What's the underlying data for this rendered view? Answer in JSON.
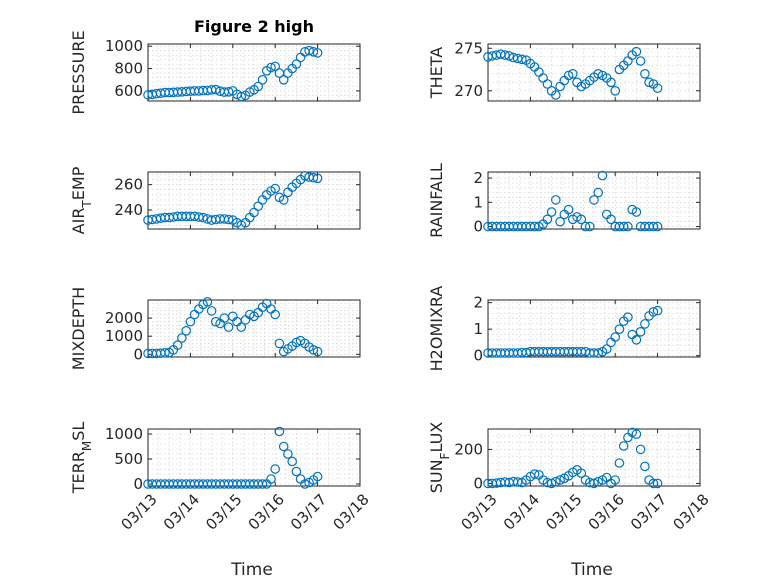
{
  "chart_data": [
    {
      "type": "scatter",
      "title": "Figure 2 high",
      "ylabel": "PRESSURE",
      "xlabel": "",
      "xlim": [
        "03/13",
        "03/18"
      ],
      "xticks": [
        "03/13",
        "03/14",
        "03/15",
        "03/16",
        "03/17",
        "03/18"
      ],
      "ylim": [
        510,
        1020
      ],
      "yticks": [
        600,
        800,
        1000
      ],
      "grid": true,
      "marker": "circle",
      "color": "#0072BD",
      "series": [
        {
          "x": [
            0,
            0.1,
            0.2,
            0.3,
            0.4,
            0.5,
            0.6,
            0.7,
            0.8,
            0.9,
            1.0,
            1.1,
            1.2,
            1.3,
            1.4,
            1.5,
            1.6,
            1.7,
            1.8,
            1.9,
            2.0,
            2.1,
            2.2,
            2.3,
            2.4,
            2.5,
            2.6,
            2.7,
            2.8,
            2.9,
            3.0,
            3.1,
            3.2,
            3.3,
            3.4,
            3.5,
            3.6,
            3.7,
            3.8,
            3.9,
            4.0
          ],
          "y": [
            565,
            570,
            575,
            580,
            585,
            585,
            588,
            590,
            592,
            595,
            598,
            600,
            600,
            603,
            605,
            610,
            612,
            598,
            590,
            592,
            600,
            570,
            550,
            560,
            590,
            610,
            640,
            700,
            780,
            810,
            820,
            760,
            700,
            760,
            800,
            840,
            900,
            950,
            960,
            950,
            940
          ]
        }
      ]
    },
    {
      "type": "scatter",
      "ylabel": "THETA",
      "xlabel": "",
      "xlim": [
        "03/13",
        "03/18"
      ],
      "ylim": [
        268.8,
        275.5
      ],
      "yticks": [
        270,
        275
      ],
      "grid": true,
      "series": [
        {
          "x": [
            0,
            0.1,
            0.2,
            0.3,
            0.4,
            0.5,
            0.6,
            0.7,
            0.8,
            0.9,
            1.0,
            1.1,
            1.2,
            1.3,
            1.4,
            1.5,
            1.6,
            1.7,
            1.8,
            1.9,
            2.0,
            2.1,
            2.2,
            2.3,
            2.4,
            2.5,
            2.6,
            2.7,
            2.8,
            2.9,
            3.0,
            3.1,
            3.2,
            3.3,
            3.4,
            3.5,
            3.6,
            3.7,
            3.8,
            3.9,
            4.0
          ],
          "y": [
            274.0,
            274.1,
            274.2,
            274.3,
            274.2,
            274.1,
            273.9,
            273.8,
            273.7,
            273.6,
            273.2,
            272.8,
            272.2,
            271.5,
            270.8,
            270.0,
            269.5,
            270.5,
            271.2,
            271.8,
            272.0,
            271.0,
            270.5,
            270.8,
            271.2,
            271.6,
            272.0,
            271.8,
            271.5,
            271.0,
            270.0,
            272.5,
            273.0,
            273.5,
            274.2,
            274.6,
            273.5,
            272.0,
            271.0,
            270.8,
            270.3
          ]
        }
      ]
    },
    {
      "type": "scatter",
      "ylabel": "AIR_TEMP",
      "xlabel": "",
      "xlim": [
        "03/13",
        "03/18"
      ],
      "ylim": [
        225,
        270
      ],
      "yticks": [
        240,
        260
      ],
      "grid": true,
      "series": [
        {
          "x": [
            0,
            0.1,
            0.2,
            0.3,
            0.4,
            0.5,
            0.6,
            0.7,
            0.8,
            0.9,
            1.0,
            1.1,
            1.2,
            1.3,
            1.4,
            1.5,
            1.6,
            1.7,
            1.8,
            1.9,
            2.0,
            2.1,
            2.2,
            2.3,
            2.4,
            2.5,
            2.6,
            2.7,
            2.8,
            2.9,
            3.0,
            3.1,
            3.2,
            3.3,
            3.4,
            3.5,
            3.6,
            3.7,
            3.8,
            3.9,
            4.0
          ],
          "y": [
            232,
            232.5,
            233,
            233.5,
            234,
            234,
            234.5,
            235,
            235,
            235,
            235,
            235,
            234.5,
            234,
            233,
            232,
            232.5,
            233,
            233,
            232.5,
            232,
            230,
            228,
            230,
            234,
            238,
            243,
            248,
            252,
            255,
            257,
            250,
            248,
            254,
            258,
            261,
            264,
            267,
            266,
            265.5,
            265
          ]
        }
      ]
    },
    {
      "type": "scatter",
      "ylabel": "RAINFALL",
      "xlabel": "",
      "xlim": [
        "03/13",
        "03/18"
      ],
      "ylim": [
        -0.1,
        2.25
      ],
      "yticks": [
        0,
        1,
        2
      ],
      "grid": true,
      "series": [
        {
          "x": [
            0,
            0.1,
            0.2,
            0.3,
            0.4,
            0.5,
            0.6,
            0.7,
            0.8,
            0.9,
            1.0,
            1.1,
            1.2,
            1.3,
            1.4,
            1.5,
            1.6,
            1.7,
            1.8,
            1.9,
            2.0,
            2.1,
            2.2,
            2.3,
            2.4,
            2.5,
            2.6,
            2.7,
            2.8,
            2.9,
            3.0,
            3.1,
            3.2,
            3.3,
            3.4,
            3.5,
            3.6,
            3.7,
            3.8,
            3.9,
            4.0
          ],
          "y": [
            0,
            0,
            0,
            0,
            0,
            0,
            0,
            0,
            0,
            0,
            0,
            0,
            0,
            0.1,
            0.3,
            0.6,
            1.1,
            0.2,
            0.5,
            0.7,
            0.3,
            0.4,
            0.3,
            0,
            0,
            1.1,
            1.4,
            2.1,
            0.5,
            0.3,
            0,
            0,
            0,
            0,
            0.7,
            0.6,
            0,
            0,
            0,
            0,
            0
          ]
        }
      ]
    },
    {
      "type": "scatter",
      "ylabel": "MIXDEPTH",
      "xlabel": "",
      "xlim": [
        "03/13",
        "03/18"
      ],
      "ylim": [
        -150,
        3000
      ],
      "yticks": [
        0,
        1000,
        2000
      ],
      "grid": true,
      "series": [
        {
          "x": [
            0,
            0.1,
            0.2,
            0.3,
            0.4,
            0.5,
            0.6,
            0.7,
            0.8,
            0.9,
            1.0,
            1.1,
            1.2,
            1.3,
            1.4,
            1.5,
            1.6,
            1.7,
            1.8,
            1.9,
            2.0,
            2.1,
            2.2,
            2.3,
            2.4,
            2.5,
            2.6,
            2.7,
            2.8,
            2.9,
            3.0,
            3.1,
            3.2,
            3.3,
            3.4,
            3.5,
            3.6,
            3.7,
            3.8,
            3.9,
            4.0
          ],
          "y": [
            50,
            50,
            50,
            60,
            80,
            100,
            250,
            500,
            900,
            1300,
            1800,
            2200,
            2500,
            2750,
            2900,
            2400,
            1800,
            1700,
            2000,
            1500,
            2100,
            1800,
            1500,
            1900,
            2200,
            2100,
            2300,
            2600,
            2800,
            2500,
            2200,
            600,
            150,
            300,
            450,
            650,
            750,
            600,
            400,
            250,
            150
          ]
        }
      ]
    },
    {
      "type": "scatter",
      "ylabel": "H2OMIXRA",
      "xlabel": "",
      "xlim": [
        "03/13",
        "03/18"
      ],
      "ylim": [
        -0.05,
        2.1
      ],
      "yticks": [
        0,
        1,
        2
      ],
      "grid": true,
      "series": [
        {
          "x": [
            0,
            0.1,
            0.2,
            0.3,
            0.4,
            0.5,
            0.6,
            0.7,
            0.8,
            0.9,
            1.0,
            1.1,
            1.2,
            1.3,
            1.4,
            1.5,
            1.6,
            1.7,
            1.8,
            1.9,
            2.0,
            2.1,
            2.2,
            2.3,
            2.4,
            2.5,
            2.6,
            2.7,
            2.8,
            2.9,
            3.0,
            3.1,
            3.2,
            3.3,
            3.4,
            3.5,
            3.6,
            3.7,
            3.8,
            3.9,
            4.0
          ],
          "y": [
            0.1,
            0.1,
            0.1,
            0.1,
            0.1,
            0.1,
            0.1,
            0.1,
            0.12,
            0.12,
            0.15,
            0.15,
            0.15,
            0.15,
            0.15,
            0.15,
            0.15,
            0.15,
            0.15,
            0.15,
            0.15,
            0.15,
            0.15,
            0.15,
            0.1,
            0.1,
            0.1,
            0.15,
            0.25,
            0.5,
            0.7,
            1.0,
            1.3,
            1.45,
            0.8,
            0.6,
            0.9,
            1.2,
            1.5,
            1.65,
            1.7
          ]
        }
      ]
    },
    {
      "type": "scatter",
      "ylabel": "TERR_MSL",
      "xlabel": "Time",
      "xlim": [
        "03/13",
        "03/18"
      ],
      "xticks": [
        "03/13",
        "03/14",
        "03/15",
        "03/16",
        "03/17",
        "03/18"
      ],
      "ylim": [
        -40,
        1100
      ],
      "yticks": [
        0,
        500,
        1000
      ],
      "grid": true,
      "series": [
        {
          "x": [
            0,
            0.1,
            0.2,
            0.3,
            0.4,
            0.5,
            0.6,
            0.7,
            0.8,
            0.9,
            1.0,
            1.1,
            1.2,
            1.3,
            1.4,
            1.5,
            1.6,
            1.7,
            1.8,
            1.9,
            2.0,
            2.1,
            2.2,
            2.3,
            2.4,
            2.5,
            2.6,
            2.7,
            2.8,
            2.9,
            3.0,
            3.1,
            3.2,
            3.3,
            3.4,
            3.5,
            3.6,
            3.7,
            3.8,
            3.9,
            4.0
          ],
          "y": [
            0,
            0,
            0,
            0,
            0,
            0,
            0,
            0,
            0,
            0,
            0,
            0,
            0,
            0,
            0,
            0,
            0,
            0,
            0,
            0,
            0,
            0,
            0,
            0,
            0,
            0,
            0,
            0,
            0,
            100,
            300,
            1050,
            750,
            600,
            450,
            250,
            100,
            0,
            30,
            80,
            150
          ]
        }
      ]
    },
    {
      "type": "scatter",
      "ylabel": "SUN_FLUX",
      "xlabel": "Time",
      "xlim": [
        "03/13",
        "03/18"
      ],
      "xticks": [
        "03/13",
        "03/14",
        "03/15",
        "03/16",
        "03/17",
        "03/18"
      ],
      "ylim": [
        -15,
        320
      ],
      "yticks": [
        0,
        200
      ],
      "grid": true,
      "series": [
        {
          "x": [
            0,
            0.1,
            0.2,
            0.3,
            0.4,
            0.5,
            0.6,
            0.7,
            0.8,
            0.9,
            1.0,
            1.1,
            1.2,
            1.3,
            1.4,
            1.5,
            1.6,
            1.7,
            1.8,
            1.9,
            2.0,
            2.1,
            2.2,
            2.3,
            2.4,
            2.5,
            2.6,
            2.7,
            2.8,
            2.9,
            3.0,
            3.1,
            3.2,
            3.3,
            3.4,
            3.5,
            3.6,
            3.7,
            3.8,
            3.9,
            4.0
          ],
          "y": [
            0,
            0,
            2,
            5,
            8,
            5,
            10,
            8,
            5,
            20,
            40,
            55,
            50,
            20,
            5,
            0,
            10,
            20,
            30,
            45,
            65,
            80,
            60,
            20,
            5,
            0,
            10,
            20,
            35,
            0,
            20,
            120,
            220,
            270,
            300,
            290,
            200,
            100,
            20,
            0,
            0
          ]
        }
      ]
    }
  ],
  "labels": {
    "title": "Figure 2 high",
    "xlabel": "Time",
    "ylabels": [
      "PRESSURE",
      "THETA",
      "AIR_TEMP",
      "RAINFALL",
      "MIXDEPTH",
      "H2OMIXRA",
      "TERR_MSL",
      "SUN_FLUX"
    ],
    "xticks": [
      "03/13",
      "03/14",
      "03/15",
      "03/16",
      "03/17",
      "03/18"
    ]
  },
  "colors": {
    "marker": "#0072BD",
    "axes": "#262626",
    "grid": "#c8c8c8"
  }
}
